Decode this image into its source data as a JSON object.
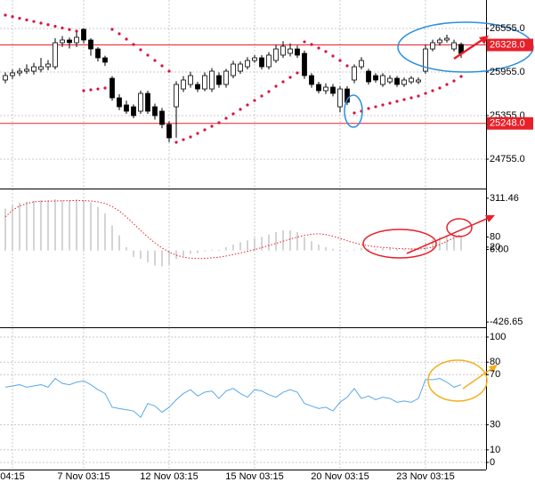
{
  "chart_data": [
    {
      "type": "candlestick",
      "open": [
        25845,
        25906,
        25943,
        25967,
        25967,
        25992,
        26028,
        26028,
        26359,
        26396,
        26359,
        26543,
        26396,
        26273,
        26151,
        25869,
        25600,
        25502,
        25477,
        25416,
        25661,
        25477,
        25416,
        25233,
        25477,
        25722,
        25784,
        25784,
        25722,
        25722,
        25906,
        25784,
        25906,
        25967,
        26028,
        26114,
        26151,
        26028,
        26114,
        26188,
        26212,
        26273,
        26212,
        25906,
        25784,
        25698,
        25747,
        25477,
        25722,
        25845,
        26028,
        25967,
        25906,
        25784,
        25820,
        25869,
        25784,
        25820,
        25820,
        25967,
        26273,
        26359,
        26396,
        26273,
        26335
      ],
      "high": [
        25950,
        25990,
        26010,
        26060,
        26080,
        26150,
        26120,
        26420,
        26450,
        26430,
        26500,
        26560,
        26420,
        26300,
        26180,
        25900,
        25650,
        25560,
        25510,
        25700,
        25700,
        25520,
        25460,
        25280,
        25830,
        25900,
        25960,
        25820,
        25950,
        26010,
        25950,
        26000,
        26110,
        26100,
        26160,
        26190,
        26190,
        26230,
        26330,
        26380,
        26350,
        26320,
        26250,
        25940,
        25820,
        25800,
        25790,
        25760,
        25760,
        26060,
        26160,
        26000,
        25940,
        25940,
        25910,
        25900,
        25880,
        25900,
        25880,
        26330,
        26400,
        26430,
        26470,
        26400,
        26360
      ],
      "low": [
        25800,
        25860,
        25900,
        25930,
        25920,
        25950,
        25980,
        25990,
        26300,
        26280,
        26300,
        26350,
        26180,
        26100,
        26040,
        25560,
        25430,
        25380,
        25320,
        25380,
        25380,
        25300,
        25180,
        24990,
        25050,
        25680,
        25740,
        25680,
        25690,
        25680,
        25740,
        25740,
        25870,
        25930,
        25990,
        26080,
        25990,
        25990,
        26080,
        26150,
        26170,
        26150,
        25860,
        25740,
        25660,
        25650,
        25620,
        25400,
        25500,
        25800,
        25990,
        25780,
        25810,
        25750,
        25790,
        25750,
        25750,
        25790,
        25790,
        25930,
        26240,
        26320,
        26360,
        26240,
        26150
      ],
      "close": [
        25906,
        25943,
        25967,
        25992,
        26028,
        26028,
        26065,
        26359,
        26396,
        26359,
        26433,
        26396,
        26273,
        26151,
        26090,
        25600,
        25477,
        25416,
        25355,
        25661,
        25416,
        25355,
        25233,
        25049,
        25784,
        25845,
        25906,
        25722,
        25906,
        25967,
        25784,
        25967,
        26065,
        26065,
        26114,
        26151,
        26028,
        26188,
        26273,
        26310,
        26273,
        26188,
        25906,
        25784,
        25698,
        25747,
        25661,
        25722,
        25539,
        26028,
        26114,
        25820,
        25845,
        25906,
        25869,
        25784,
        25845,
        25869,
        25845,
        26273,
        26359,
        26396,
        26420,
        26359,
        26212
      ],
      "sar": {
        "color": "#d6123f",
        "values": [
          26739,
          26717,
          26695,
          26673,
          26651,
          26629,
          26607,
          26585,
          26562,
          26540,
          26518,
          25698,
          25710,
          25722,
          25735,
          26543,
          26482,
          26408,
          26335,
          26261,
          26188,
          26114,
          26041,
          25967,
          24988,
          25024,
          25061,
          25110,
          25159,
          25208,
          25257,
          25318,
          25380,
          25441,
          25502,
          25564,
          25625,
          25686,
          25759,
          25820,
          25882,
          25943,
          26371,
          26335,
          26286,
          26237,
          26176,
          26114,
          26041,
          25392,
          25416,
          25453,
          25477,
          25502,
          25527,
          25551,
          25576,
          25600,
          25625,
          25661,
          25698,
          25735,
          25784,
          25833,
          25894
        ]
      },
      "levels": [
        {
          "value": 26328,
          "label": "26328.0"
        },
        {
          "value": 25248,
          "label": "25248.0"
        }
      ],
      "level_color": "#e8202a",
      "ylim": [
        24351,
        26947
      ],
      "yticks": [
        {
          "value": 26555,
          "label": "26555.0"
        },
        {
          "value": 25955,
          "label": "25955.0"
        },
        {
          "value": 25355,
          "label": "25355.0"
        },
        {
          "value": 24755,
          "label": "24755.0"
        }
      ],
      "grid": true
    },
    {
      "type": "macd",
      "histogram": {
        "color": "#a8a8a8",
        "values": [
          250,
          270,
          285,
          290,
          295,
          300,
          300,
          305,
          300,
          300,
          305,
          300,
          285,
          260,
          220,
          150,
          90,
          20,
          -40,
          -50,
          -70,
          -90,
          -95,
          -85,
          -50,
          -35,
          -20,
          -15,
          -5,
          5,
          5,
          20,
          35,
          50,
          60,
          75,
          80,
          95,
          110,
          120,
          120,
          110,
          80,
          55,
          35,
          20,
          10,
          5,
          -5,
          5,
          15,
          10,
          10,
          15,
          15,
          10,
          10,
          15,
          15,
          50,
          65,
          80,
          90,
          95,
          90
        ]
      },
      "signal": {
        "color": "#e8202a",
        "values": [
          200,
          240,
          265,
          280,
          290,
          293,
          294,
          295,
          296,
          297,
          298,
          297,
          295,
          290,
          280,
          262,
          235,
          200,
          160,
          120,
          80,
          45,
          15,
          -10,
          -28,
          -40,
          -46,
          -48,
          -47,
          -44,
          -40,
          -33,
          -25,
          -15,
          -5,
          5,
          17,
          30,
          42,
          55,
          68,
          80,
          90,
          97,
          100,
          95,
          85,
          72,
          58,
          45,
          35,
          28,
          22,
          18,
          15,
          12,
          10,
          9,
          8,
          12,
          20,
          35,
          55,
          75,
          95
        ]
      },
      "ylim": [
        -458,
        364
      ],
      "yticks": [
        311.46,
        80,
        20,
        {
          "value": 6,
          "label": "6.00"
        },
        -426.65
      ],
      "grid": false
    },
    {
      "type": "line",
      "categories": [
        null,
        "04:15",
        null,
        null,
        null,
        null,
        null,
        null,
        null,
        null,
        null,
        "7 Nov 03:15",
        null,
        null,
        null,
        null,
        null,
        null,
        null,
        null,
        null,
        null,
        null,
        "12 Nov 03:15",
        null,
        null,
        null,
        null,
        null,
        null,
        null,
        null,
        null,
        null,
        null,
        "15 Nov 03:15",
        null,
        null,
        null,
        null,
        null,
        null,
        null,
        null,
        null,
        null,
        null,
        "20 Nov 03:15",
        null,
        null,
        null,
        null,
        null,
        null,
        null,
        null,
        null,
        null,
        null,
        "23 Nov 03:15",
        null,
        null,
        null,
        null,
        null
      ],
      "values": [
        60,
        61,
        62,
        60,
        61,
        62,
        60,
        67,
        63,
        62,
        64,
        65,
        62,
        58,
        55,
        44,
        43,
        42,
        41,
        36,
        47,
        45,
        40,
        44,
        50,
        55,
        58,
        53,
        56,
        57,
        51,
        57,
        59,
        55,
        52,
        58,
        57,
        54,
        52,
        56,
        58,
        56,
        47,
        45,
        43,
        44,
        41,
        48,
        52,
        59,
        51,
        53,
        50,
        52,
        51,
        48,
        49,
        48,
        51,
        66,
        66,
        67,
        64,
        60,
        62
      ],
      "color": "#5aa8e6",
      "ylim": [
        -5.7,
        107.1
      ],
      "yticks": [
        100,
        80,
        70,
        30,
        10,
        0
      ],
      "grid": true
    }
  ]
}
